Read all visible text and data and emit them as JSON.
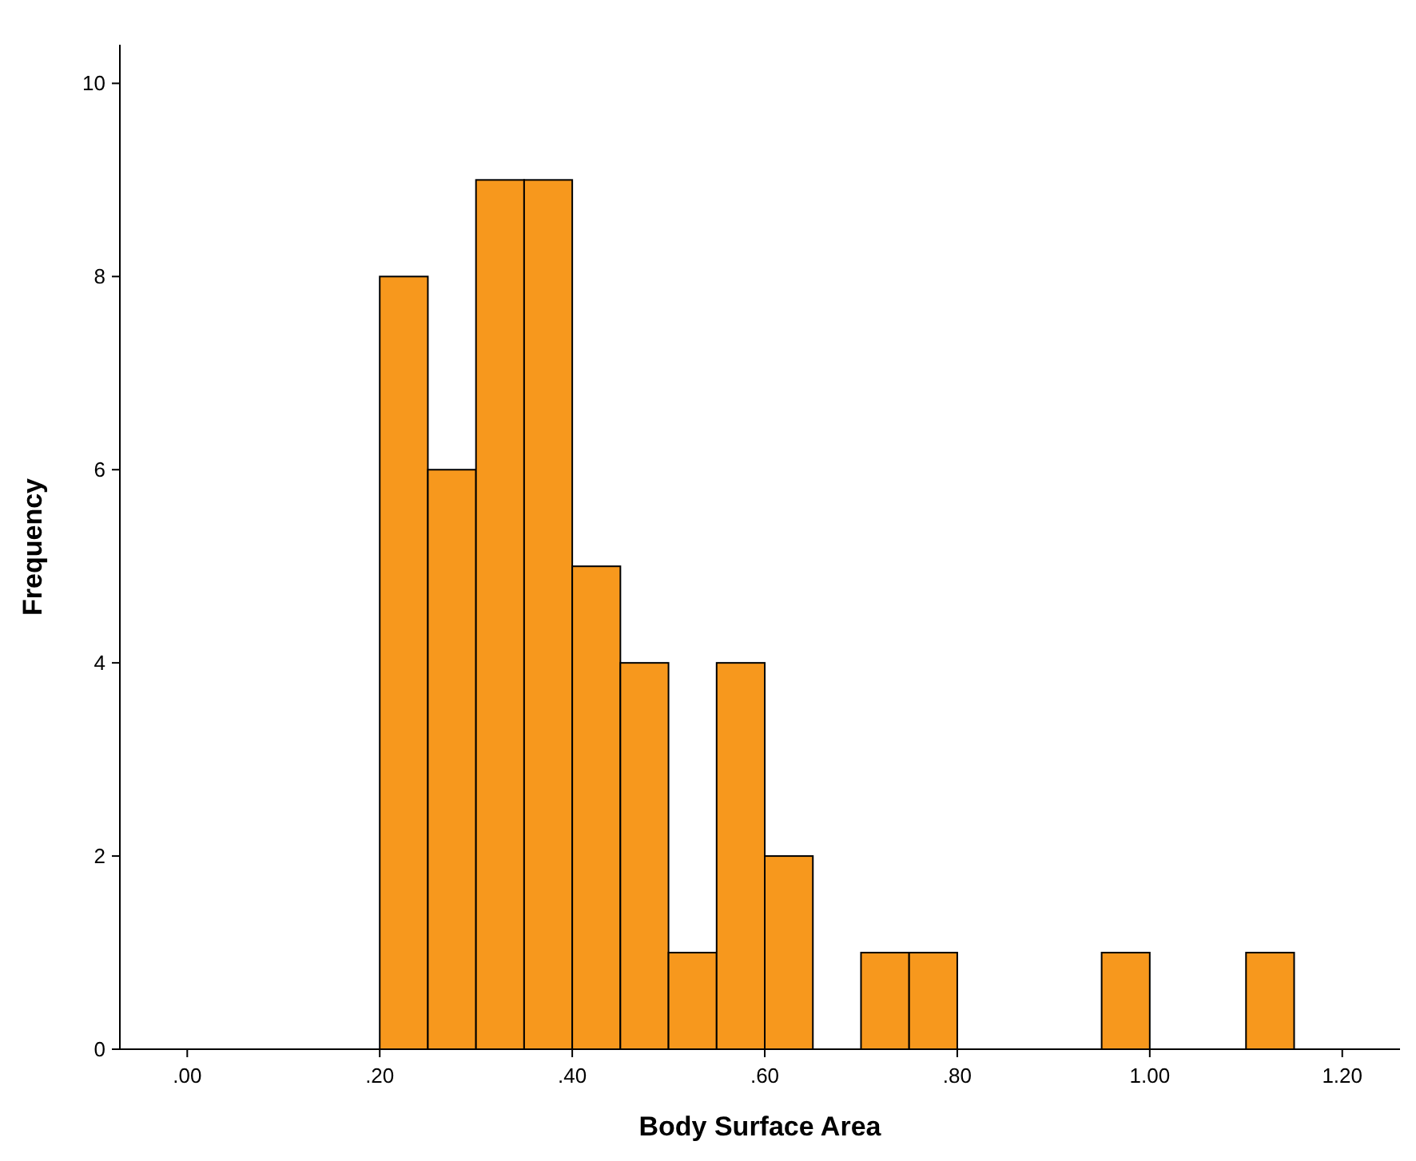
{
  "chart_data": {
    "type": "histogram",
    "xlabel": "Body Surface Area",
    "ylabel": "Frequency",
    "bins": [
      0.2,
      0.25,
      0.3,
      0.35,
      0.4,
      0.45,
      0.5,
      0.55,
      0.6,
      0.65,
      0.7,
      0.75,
      0.8,
      0.85,
      0.9,
      0.95,
      1.0,
      1.05,
      1.1,
      1.15
    ],
    "values": [
      8,
      6,
      9,
      9,
      5,
      4,
      1,
      4,
      2,
      0,
      1,
      1,
      0,
      0,
      0,
      1,
      0,
      0,
      1
    ],
    "color": "#f7981d",
    "xlim": [
      -0.07,
      1.26
    ],
    "xticks": [
      {
        "value": 0,
        "label": ".00"
      },
      {
        "value": 0.2,
        "label": ".20"
      },
      {
        "value": 0.4,
        "label": ".40"
      },
      {
        "value": 0.6,
        "label": ".60"
      },
      {
        "value": 0.8,
        "label": ".80"
      },
      {
        "value": 1.0,
        "label": "1.00"
      },
      {
        "value": 1.2,
        "label": "1.20"
      }
    ],
    "ylim": [
      0,
      10.4
    ],
    "yticks": [
      0,
      2,
      4,
      6,
      8,
      10
    ],
    "grid": false
  }
}
